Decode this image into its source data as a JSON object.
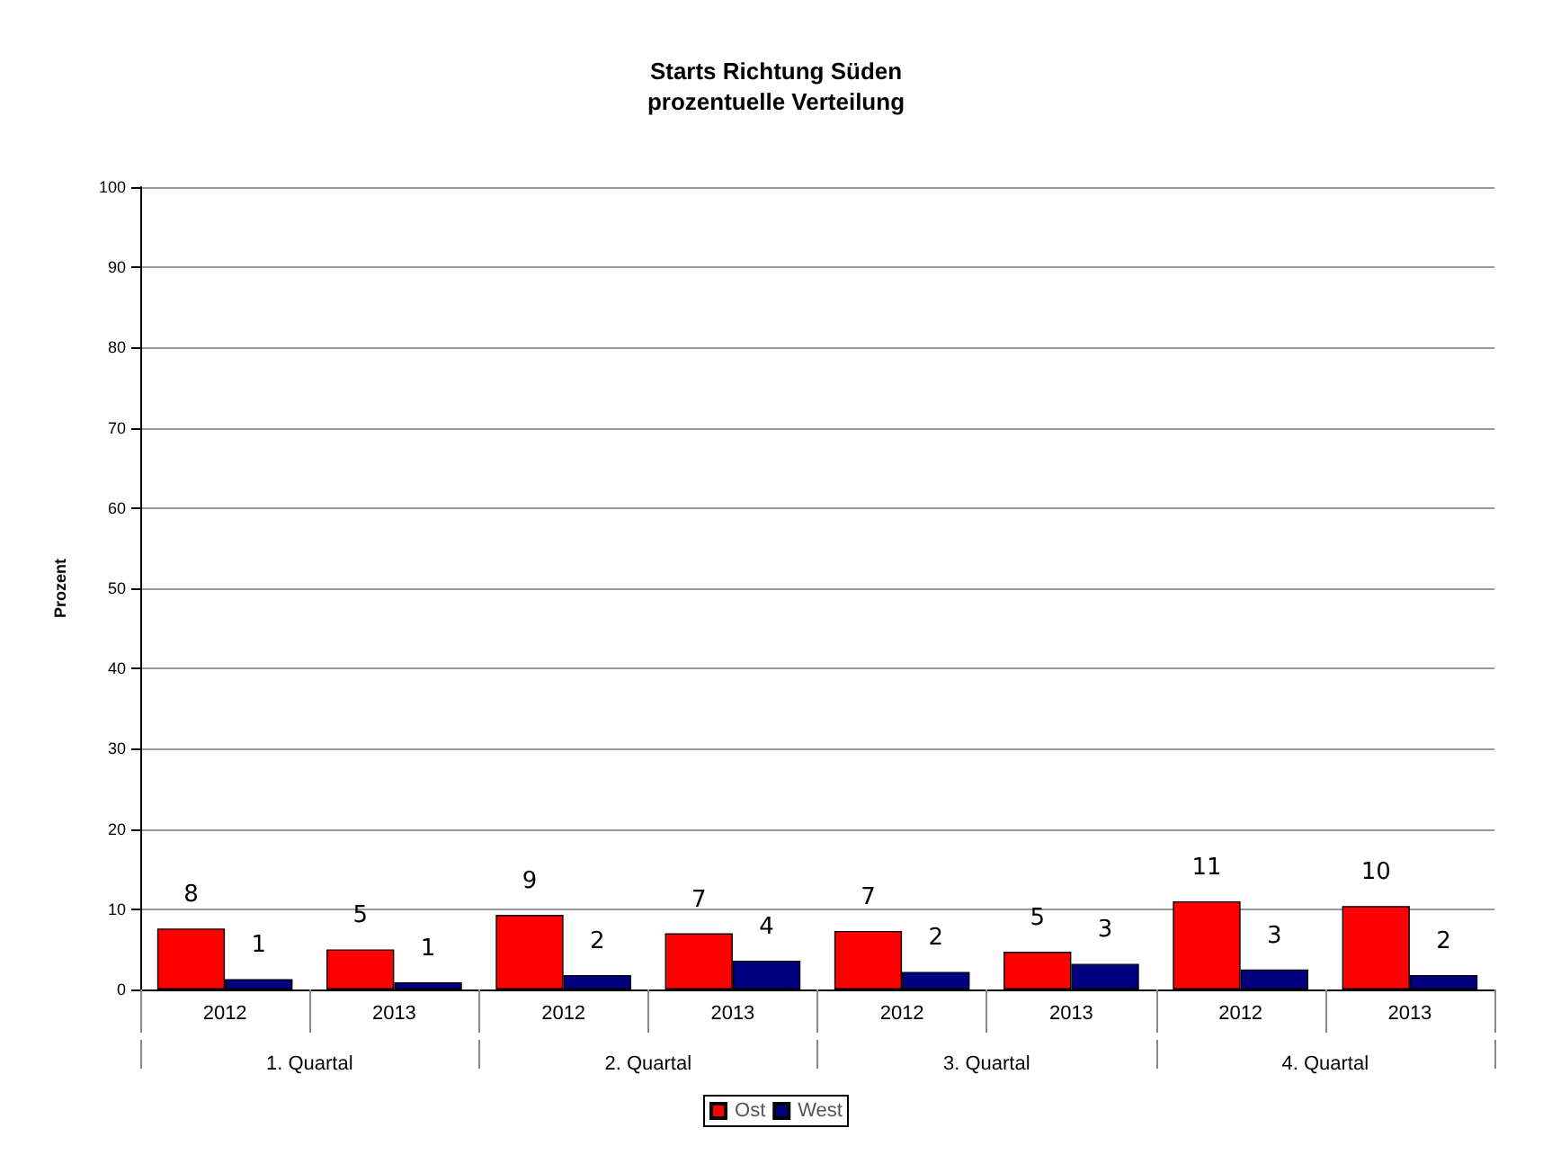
{
  "chart_data": {
    "type": "bar",
    "title": "Starts Richtung Süden",
    "subtitle": "prozentuelle Verteilung",
    "ylabel": "Prozent",
    "categories": [
      "2012",
      "2013",
      "2012",
      "2013",
      "2012",
      "2013",
      "2012",
      "2013"
    ],
    "annotations": [
      "1. Quartal",
      "2. Quartal",
      "3. Quartal",
      "4. Quartal"
    ],
    "series": [
      {
        "name": "Ost",
        "color": "#ff0000",
        "values": [
          7.6,
          5.0,
          9.3,
          7.0,
          7.3,
          4.7,
          11.0,
          10.4
        ],
        "value_labels": [
          "8",
          "5",
          "9",
          "7",
          "7",
          "5",
          "11",
          "10"
        ]
      },
      {
        "name": "West",
        "color": "#000080",
        "values": [
          1.3,
          0.9,
          1.8,
          3.6,
          2.2,
          3.2,
          2.5,
          1.8
        ],
        "value_labels": [
          "1",
          "1",
          "2",
          "4",
          "2",
          "3",
          "3",
          "2"
        ]
      }
    ],
    "ylim": [
      0,
      100
    ],
    "yticks": [
      0,
      10,
      20,
      30,
      40,
      50,
      60,
      70,
      80,
      90,
      100
    ],
    "grid": "y",
    "legend": "bottom"
  }
}
